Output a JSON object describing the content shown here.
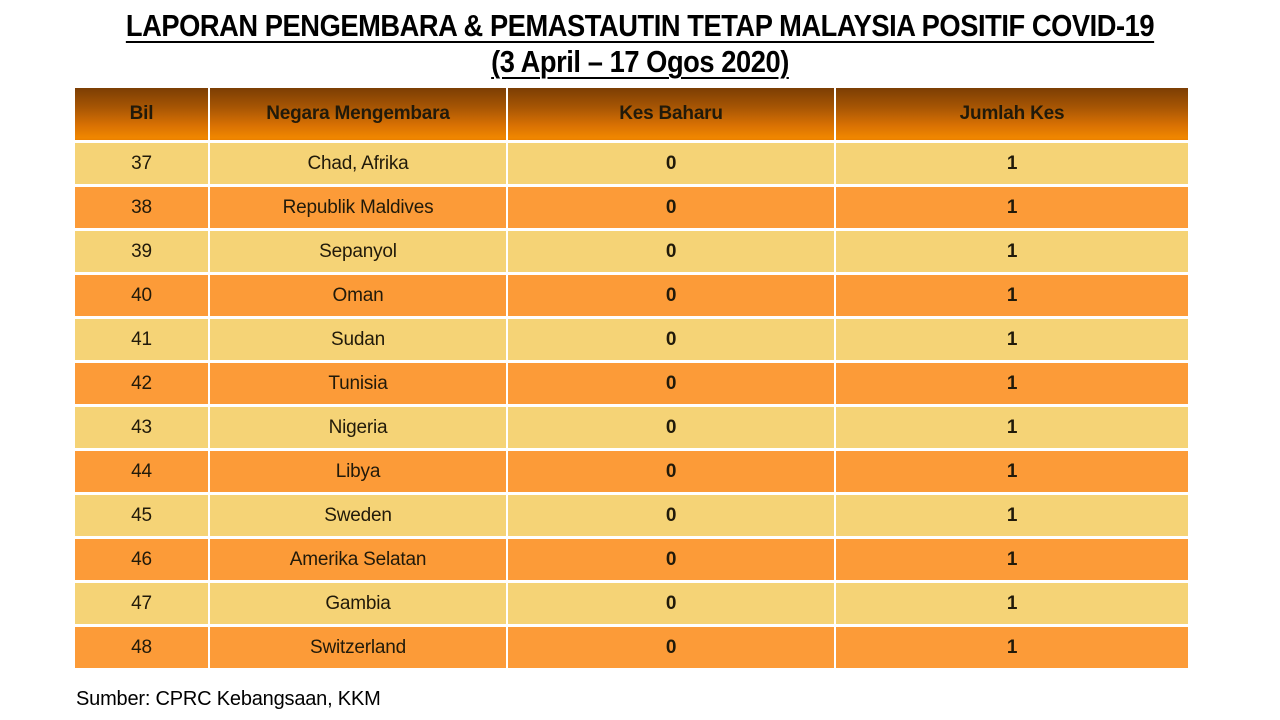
{
  "title": {
    "line1": "LAPORAN PENGEMBARA & PEMASTAUTIN TETAP MALAYSIA POSITIF COVID-19",
    "line2": "(3 April – 17 Ogos 2020)"
  },
  "table": {
    "headers": [
      "Bil",
      "Negara Mengembara",
      "Kes Baharu",
      "Jumlah Kes"
    ],
    "rows": [
      {
        "bil": "37",
        "negara": "Chad, Afrika",
        "kes_baharu": "0",
        "jumlah_kes": "1"
      },
      {
        "bil": "38",
        "negara": "Republik Maldives",
        "kes_baharu": "0",
        "jumlah_kes": "1"
      },
      {
        "bil": "39",
        "negara": "Sepanyol",
        "kes_baharu": "0",
        "jumlah_kes": "1"
      },
      {
        "bil": "40",
        "negara": "Oman",
        "kes_baharu": "0",
        "jumlah_kes": "1"
      },
      {
        "bil": "41",
        "negara": "Sudan",
        "kes_baharu": "0",
        "jumlah_kes": "1"
      },
      {
        "bil": "42",
        "negara": "Tunisia",
        "kes_baharu": "0",
        "jumlah_kes": "1"
      },
      {
        "bil": "43",
        "negara": "Nigeria",
        "kes_baharu": "0",
        "jumlah_kes": "1"
      },
      {
        "bil": "44",
        "negara": "Libya",
        "kes_baharu": "0",
        "jumlah_kes": "1"
      },
      {
        "bil": "45",
        "negara": "Sweden",
        "kes_baharu": "0",
        "jumlah_kes": "1"
      },
      {
        "bil": "46",
        "negara": "Amerika Selatan",
        "kes_baharu": "0",
        "jumlah_kes": "1"
      },
      {
        "bil": "47",
        "negara": "Gambia",
        "kes_baharu": "0",
        "jumlah_kes": "1"
      },
      {
        "bil": "48",
        "negara": "Switzerland",
        "kes_baharu": "0",
        "jumlah_kes": "1"
      }
    ]
  },
  "footer": {
    "source": "Sumber: CPRC Kebangsaan, KKM"
  },
  "colors": {
    "header_gradient_top": "#7c3e04",
    "header_gradient_bottom": "#f08700",
    "header_text": "#ffffff",
    "row_band_light": "#f5d376",
    "row_band_orange": "#fc9b38",
    "separator": "#f8f2de",
    "body_text": "#211a0a"
  }
}
